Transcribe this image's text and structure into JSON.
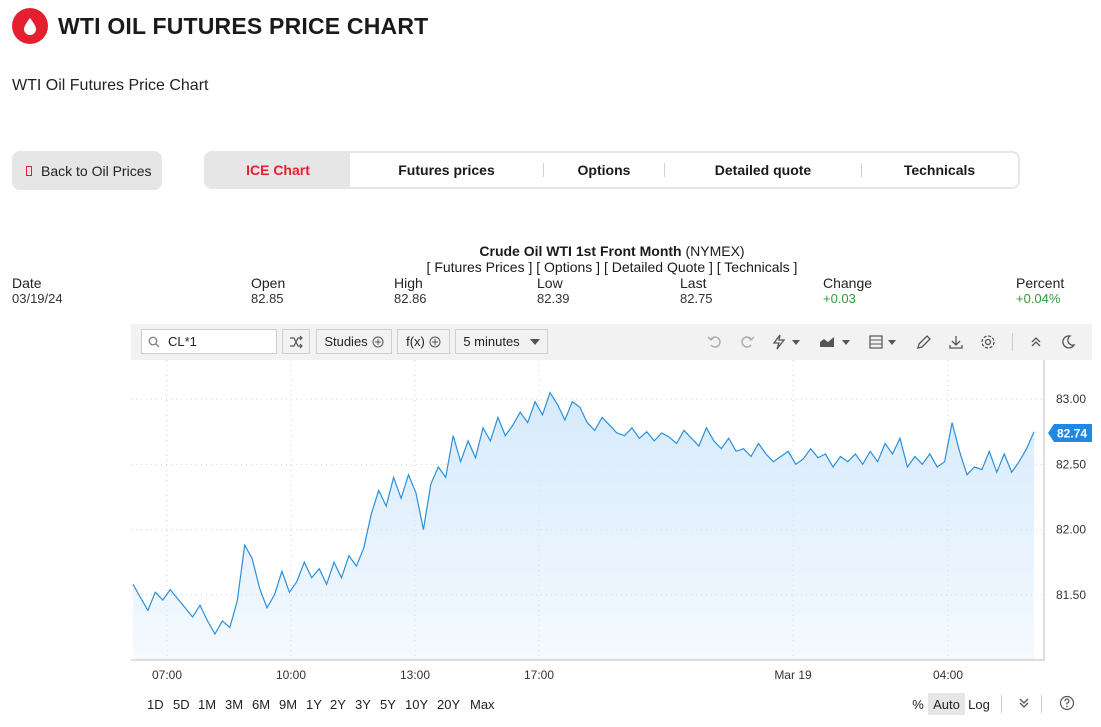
{
  "page": {
    "title": "WTI OIL FUTURES PRICE CHART",
    "subtitle": "WTI Oil Futures Price Chart"
  },
  "nav": {
    "back_label": "Back to Oil Prices",
    "tabs": [
      {
        "label": "ICE Chart",
        "active": true
      },
      {
        "label": "Futures prices",
        "active": false
      },
      {
        "label": "Options",
        "active": false
      },
      {
        "label": "Detailed quote",
        "active": false
      },
      {
        "label": "Technicals",
        "active": false
      }
    ]
  },
  "quote": {
    "instrument": "Crude Oil WTI 1st Front Month",
    "exchange": "(NYMEX)",
    "links": "[ Futures Prices ] [ Options ] [ Detailed Quote ] [ Technicals ]",
    "stats": [
      {
        "label": "Date",
        "value": "03/19/24",
        "color": "neutral"
      },
      {
        "label": "Open",
        "value": "82.85",
        "color": "neutral"
      },
      {
        "label": "High",
        "value": "82.86",
        "color": "neutral"
      },
      {
        "label": "Low",
        "value": "82.39",
        "color": "neutral"
      },
      {
        "label": "Last",
        "value": "82.75",
        "color": "neutral"
      },
      {
        "label": "Change",
        "value": "+0.03",
        "color": "up"
      },
      {
        "label": "Percent",
        "value": "+0.04%",
        "color": "up"
      }
    ]
  },
  "toolbar": {
    "symbol": "CL*1",
    "studies_label": "Studies",
    "fx_label": "f(x)",
    "interval_label": "5 minutes",
    "icons": [
      "undo-icon",
      "redo-icon",
      "lightning-icon",
      "chart-type-icon",
      "layout-icon",
      "pencil-icon",
      "download-icon",
      "settings-icon",
      "collapse-icon",
      "dark-mode-icon"
    ]
  },
  "bottom": {
    "ranges": [
      "1D",
      "5D",
      "1M",
      "3M",
      "6M",
      "9M",
      "1Y",
      "2Y",
      "3Y",
      "5Y",
      "10Y",
      "20Y",
      "Max"
    ],
    "scales": [
      {
        "label": "%",
        "active": false
      },
      {
        "label": "Auto",
        "active": true
      },
      {
        "label": "Log",
        "active": false
      }
    ]
  },
  "colors": {
    "brand": "#e4202e",
    "up": "#2e9e38",
    "line": "#2b8fdc",
    "fill": "#d6eafc",
    "price_tag": "#1e88e5"
  },
  "chart_data": {
    "type": "area",
    "x_tick_labels": [
      "07:00",
      "10:00",
      "13:00",
      "17:00",
      "Mar 19",
      "04:00"
    ],
    "y_tick_labels": [
      "83.00",
      "82.50",
      "82.00",
      "81.50"
    ],
    "ylim": [
      81.0,
      83.3
    ],
    "last_price_label": "82.74",
    "grid": true,
    "series": [
      {
        "values": [
          81.58,
          81.48,
          81.38,
          81.52,
          81.46,
          81.54,
          81.47,
          81.4,
          81.33,
          81.42,
          81.3,
          81.2,
          81.3,
          81.25,
          81.45,
          81.88,
          81.78,
          81.55,
          81.4,
          81.5,
          81.68,
          81.52,
          81.6,
          81.75,
          81.63,
          81.7,
          81.58,
          81.75,
          81.63,
          81.8,
          81.72,
          81.86,
          82.12,
          82.3,
          82.18,
          82.4,
          82.24,
          82.42,
          82.28,
          82.0,
          82.35,
          82.48,
          82.4,
          82.72,
          82.52,
          82.68,
          82.55,
          82.78,
          82.68,
          82.86,
          82.72,
          82.8,
          82.9,
          82.82,
          82.98,
          82.88,
          83.05,
          82.96,
          82.84,
          82.98,
          82.94,
          82.82,
          82.76,
          82.86,
          82.8,
          82.74,
          82.72,
          82.78,
          82.7,
          82.75,
          82.68,
          82.74,
          82.71,
          82.66,
          82.76,
          82.7,
          82.64,
          82.78,
          82.68,
          82.62,
          82.7,
          82.6,
          82.62,
          82.56,
          82.66,
          82.58,
          82.52,
          82.56,
          82.6,
          82.5,
          82.54,
          82.62,
          82.55,
          82.58,
          82.48,
          82.56,
          82.52,
          82.58,
          82.5,
          82.6,
          82.52,
          82.66,
          82.58,
          82.7,
          82.48,
          82.56,
          82.5,
          82.58,
          82.48,
          82.52,
          82.82,
          82.6,
          82.42,
          82.48,
          82.46,
          82.6,
          82.44,
          82.58,
          82.44,
          82.52,
          82.62,
          82.75
        ]
      }
    ]
  }
}
